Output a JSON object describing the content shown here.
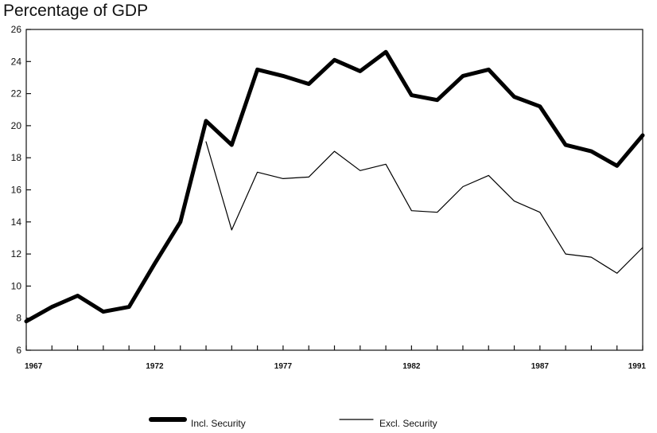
{
  "chart_data": {
    "type": "line",
    "title": "Percentage of GDP",
    "xlabel": "",
    "ylabel": "",
    "x": [
      1967,
      1968,
      1969,
      1970,
      1971,
      1972,
      1973,
      1974,
      1975,
      1976,
      1977,
      1978,
      1979,
      1980,
      1981,
      1982,
      1983,
      1984,
      1985,
      1986,
      1987,
      1988,
      1989,
      1990,
      1991
    ],
    "xlim": [
      1967,
      1991
    ],
    "ylim": [
      6,
      26
    ],
    "x_ticks": [
      "1967",
      "1972",
      "1977",
      "1982",
      "1987",
      "1991"
    ],
    "y_ticks": [
      "6",
      "8",
      "10",
      "12",
      "14",
      "16",
      "18",
      "20",
      "22",
      "24",
      "26"
    ],
    "grid": false,
    "legend_position": "bottom",
    "series": [
      {
        "name": "Incl. Security",
        "style": "thick",
        "color": "#000000",
        "values": [
          7.8,
          8.7,
          9.4,
          8.4,
          8.7,
          11.4,
          14.0,
          20.3,
          18.8,
          23.5,
          23.1,
          22.6,
          24.1,
          23.4,
          24.6,
          21.9,
          21.6,
          23.1,
          23.5,
          21.8,
          21.2,
          18.8,
          18.4,
          17.5,
          19.4
        ]
      },
      {
        "name": "Excl. Security",
        "style": "thin",
        "color": "#000000",
        "values": [
          null,
          null,
          null,
          null,
          null,
          null,
          null,
          19.0,
          13.5,
          17.1,
          16.7,
          16.8,
          18.4,
          17.2,
          17.6,
          14.7,
          14.6,
          16.2,
          16.9,
          15.3,
          14.6,
          12.0,
          11.8,
          10.8,
          12.4
        ]
      }
    ]
  }
}
